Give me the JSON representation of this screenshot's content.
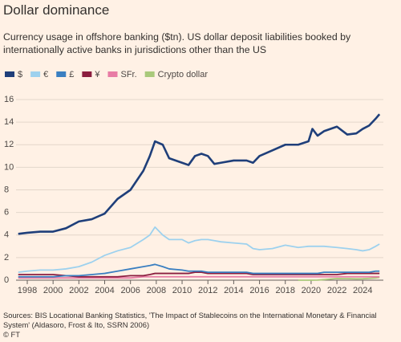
{
  "chart_data": {
    "type": "line",
    "title": "Dollar dominance",
    "subtitle": "Currency usage in offshore banking ($tn). US dollar deposit liabilities booked by internationally active banks in jurisdictions other than the US",
    "source": "Sources: BIS Locational Banking Statistics, 'The Impact of Stablecoins on the International Monetary & Financial System' (Aldasoro, Frost & Ito, SSRN 2006)",
    "copyright": "© FT",
    "x": [
      1997.3,
      1998,
      1999,
      2000,
      2001,
      2002,
      2003,
      2004,
      2005,
      2006,
      2007,
      2007.5,
      2007.9,
      2008.5,
      2009,
      2010,
      2010.5,
      2011,
      2011.5,
      2012,
      2012.5,
      2013,
      2014,
      2015,
      2015.5,
      2016,
      2017,
      2018,
      2019,
      2019.8,
      2020.1,
      2020.5,
      2021,
      2022,
      2022.8,
      2023.5,
      2024,
      2024.5,
      2025,
      2025.3
    ],
    "series": [
      {
        "name": "$",
        "color": "#1f3f7a",
        "values": [
          4.1,
          4.2,
          4.3,
          4.3,
          4.6,
          5.2,
          5.4,
          5.9,
          7.2,
          8.0,
          9.7,
          11.0,
          12.3,
          12.0,
          10.8,
          10.4,
          10.2,
          11.0,
          11.2,
          11.0,
          10.3,
          10.4,
          10.6,
          10.6,
          10.4,
          11.0,
          11.5,
          12.0,
          12.0,
          12.3,
          13.4,
          12.8,
          13.2,
          13.6,
          12.9,
          13.0,
          13.4,
          13.7,
          14.3,
          14.7
        ]
      },
      {
        "name": "€",
        "color": "#9dd1ee",
        "values": [
          0.7,
          0.8,
          0.9,
          0.9,
          1.0,
          1.2,
          1.6,
          2.2,
          2.6,
          2.9,
          3.6,
          4.0,
          4.7,
          4.0,
          3.6,
          3.6,
          3.3,
          3.5,
          3.6,
          3.6,
          3.5,
          3.4,
          3.3,
          3.2,
          2.8,
          2.7,
          2.8,
          3.1,
          2.9,
          3.0,
          3.0,
          3.0,
          3.0,
          2.9,
          2.8,
          2.7,
          2.6,
          2.7,
          3.0,
          3.2
        ]
      },
      {
        "name": "£",
        "color": "#3a7fc1",
        "values": [
          0.3,
          0.3,
          0.3,
          0.3,
          0.4,
          0.4,
          0.5,
          0.6,
          0.8,
          1.0,
          1.2,
          1.3,
          1.4,
          1.2,
          1.0,
          0.9,
          0.8,
          0.8,
          0.8,
          0.7,
          0.7,
          0.7,
          0.7,
          0.7,
          0.6,
          0.6,
          0.6,
          0.6,
          0.6,
          0.6,
          0.6,
          0.6,
          0.7,
          0.7,
          0.7,
          0.7,
          0.7,
          0.7,
          0.8,
          0.8
        ]
      },
      {
        "name": "¥",
        "color": "#8b1e3f",
        "values": [
          0.5,
          0.5,
          0.5,
          0.5,
          0.4,
          0.3,
          0.3,
          0.3,
          0.3,
          0.4,
          0.4,
          0.5,
          0.6,
          0.6,
          0.6,
          0.6,
          0.6,
          0.7,
          0.7,
          0.6,
          0.6,
          0.6,
          0.6,
          0.6,
          0.5,
          0.5,
          0.5,
          0.5,
          0.5,
          0.5,
          0.5,
          0.5,
          0.5,
          0.5,
          0.6,
          0.6,
          0.6,
          0.6,
          0.6,
          0.6
        ]
      },
      {
        "name": "SFr.",
        "color": "#e87ca5",
        "values": [
          0.2,
          0.2,
          0.2,
          0.2,
          0.2,
          0.2,
          0.2,
          0.2,
          0.2,
          0.2,
          0.3,
          0.3,
          0.3,
          0.3,
          0.3,
          0.3,
          0.3,
          0.3,
          0.3,
          0.3,
          0.3,
          0.3,
          0.3,
          0.3,
          0.3,
          0.3,
          0.3,
          0.3,
          0.3,
          0.3,
          0.3,
          0.3,
          0.3,
          0.3,
          0.3,
          0.3,
          0.3,
          0.3,
          0.3,
          0.3
        ]
      },
      {
        "name": "Crypto dollar",
        "color": "#a9c97b",
        "values": [
          null,
          null,
          null,
          null,
          null,
          null,
          null,
          null,
          null,
          null,
          null,
          null,
          null,
          null,
          null,
          null,
          null,
          null,
          null,
          null,
          null,
          null,
          null,
          null,
          null,
          null,
          null,
          null,
          0.0,
          0.0,
          0.0,
          0.01,
          0.05,
          0.15,
          0.14,
          0.12,
          0.13,
          0.16,
          0.2,
          0.25
        ]
      }
    ],
    "xlim": [
      1997.13,
      2025.6
    ],
    "xticks": [
      1998,
      2000,
      2002,
      2004,
      2006,
      2008,
      2010,
      2012,
      2014,
      2016,
      2018,
      2020,
      2022,
      2024
    ],
    "ylim": [
      0,
      16
    ],
    "yticks": [
      0,
      2,
      4,
      6,
      8,
      10,
      12,
      14,
      16
    ],
    "grid": true,
    "legend": "top-left"
  }
}
